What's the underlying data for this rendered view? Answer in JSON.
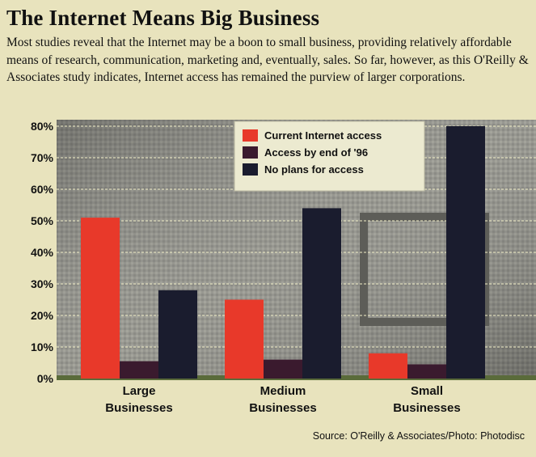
{
  "title": "The Internet Means Big Business",
  "subtitle": "Most studies reveal that the Internet may be a boon to small business, providing relatively affordable means of research, communication, marketing and, eventually, sales. So far, however, as this O'Reilly & Associates study indicates, Internet access has remained the purview of larger corporations.",
  "source": "Source: O'Reilly & Associates/Photo: Photodisc",
  "colors": {
    "background": "#e8e3bd",
    "plot_background": "#8a8a82",
    "current": "#e8392a",
    "by_end_96": "#3a1a2e",
    "no_plans": "#1a1c2e",
    "legend_bg": "#ecead0",
    "gridline": "#f2efc8"
  },
  "chart_data": {
    "type": "bar",
    "title": "The Internet Means Big Business",
    "categories": [
      [
        "Large",
        "Businesses"
      ],
      [
        "Medium",
        "Businesses"
      ],
      [
        "Small",
        "Businesses"
      ]
    ],
    "series": [
      {
        "name": "Current Internet access",
        "values": [
          51,
          25,
          8
        ]
      },
      {
        "name": "Access by end of '96",
        "values": [
          5.5,
          6,
          4.5
        ]
      },
      {
        "name": "No plans for access",
        "values": [
          28,
          54,
          80
        ]
      }
    ],
    "ylim": [
      0,
      80
    ],
    "yticks": [
      0,
      10,
      20,
      30,
      40,
      50,
      60,
      70,
      80
    ],
    "ytick_labels": [
      "0%",
      "10%",
      "20%",
      "30%",
      "40%",
      "50%",
      "60%",
      "70%",
      "80%"
    ],
    "grid": true,
    "legend_position": "top-center"
  }
}
